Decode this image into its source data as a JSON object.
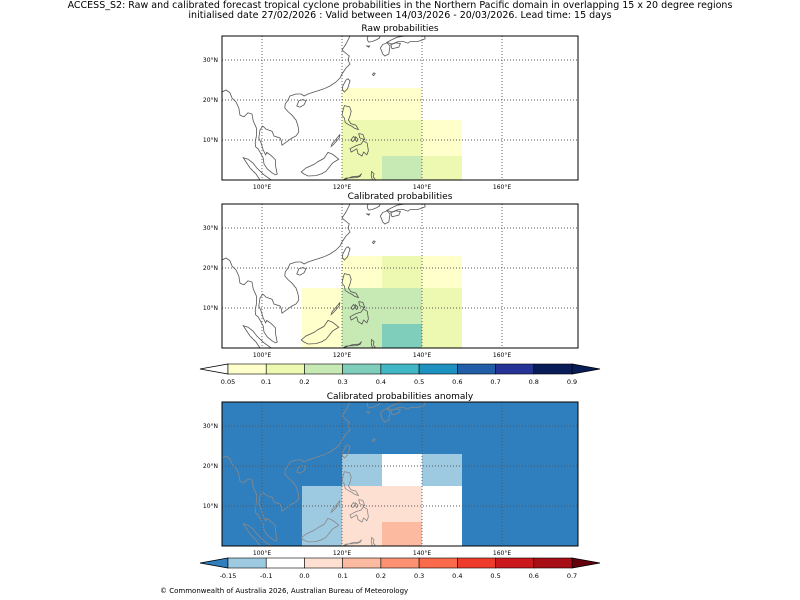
{
  "header": {
    "line1": "ACCESS_S2: Raw and calibrated forecast tropical cyclone probabilities in the Northern Pacific domain in overlapping 15 x 20 degree regions",
    "line2": "initialised date 27/02/2026 :  Valid between 14/03/2026 - 20/03/2026. Lead time: 15 days"
  },
  "map_axes": {
    "lon_ticks": [
      100,
      120,
      140,
      160
    ],
    "lon_labels": [
      "100°E",
      "120°E",
      "140°E",
      "160°E"
    ],
    "lat_ticks": [
      10,
      20,
      30
    ],
    "lat_labels": [
      "10°N",
      "20°N",
      "30°N"
    ],
    "lon_range": [
      90,
      179
    ],
    "lat_range": [
      0,
      36
    ]
  },
  "panels": [
    {
      "title": "Raw probabilities",
      "background": "#ffffff",
      "coast_color": "#555555",
      "cells": [
        {
          "lon0": 120,
          "lon1": 140,
          "lat0": 15,
          "lat1": 23,
          "color": "#ffffcc"
        },
        {
          "lon0": 120,
          "lon1": 140,
          "lat0": 0,
          "lat1": 15,
          "color": "#edf8b1"
        },
        {
          "lon0": 140,
          "lon1": 150,
          "lat0": 0,
          "lat1": 15,
          "color": "#ffffcc"
        },
        {
          "lon0": 130,
          "lon1": 140,
          "lat0": 0,
          "lat1": 6,
          "color": "#c7e9b4"
        },
        {
          "lon0": 140,
          "lon1": 150,
          "lat0": 0,
          "lat1": 6,
          "color": "#edf8b1"
        }
      ]
    },
    {
      "title": "Calibrated probabilities",
      "background": "#ffffff",
      "coast_color": "#555555",
      "cells": [
        {
          "lon0": 120,
          "lon1": 150,
          "lat0": 15,
          "lat1": 23,
          "color": "#ffffcc"
        },
        {
          "lon0": 130,
          "lon1": 140,
          "lat0": 15,
          "lat1": 23,
          "color": "#edf8b1"
        },
        {
          "lon0": 110,
          "lon1": 120,
          "lat0": 0,
          "lat1": 15,
          "color": "#ffffcc"
        },
        {
          "lon0": 120,
          "lon1": 140,
          "lat0": 0,
          "lat1": 15,
          "color": "#c7e9b4"
        },
        {
          "lon0": 140,
          "lon1": 150,
          "lat0": 0,
          "lat1": 15,
          "color": "#edf8b1"
        },
        {
          "lon0": 130,
          "lon1": 140,
          "lat0": 0,
          "lat1": 6,
          "color": "#7fcdbb"
        }
      ]
    },
    {
      "title": "Calibrated probabilities anomaly",
      "background": "#2f7fbf",
      "coast_color": "#888888",
      "cells": [
        {
          "lon0": 120,
          "lon1": 130,
          "lat0": 15,
          "lat1": 23,
          "color": "#9ecae1"
        },
        {
          "lon0": 130,
          "lon1": 140,
          "lat0": 15,
          "lat1": 23,
          "color": "#ffffff"
        },
        {
          "lon0": 140,
          "lon1": 150,
          "lat0": 15,
          "lat1": 23,
          "color": "#9ecae1"
        },
        {
          "lon0": 110,
          "lon1": 120,
          "lat0": 0,
          "lat1": 15,
          "color": "#9ecae1"
        },
        {
          "lon0": 120,
          "lon1": 140,
          "lat0": 0,
          "lat1": 15,
          "color": "#fee0d2"
        },
        {
          "lon0": 140,
          "lon1": 150,
          "lat0": 0,
          "lat1": 15,
          "color": "#ffffff"
        },
        {
          "lon0": 130,
          "lon1": 140,
          "lat0": 0,
          "lat1": 6,
          "color": "#fcbba1"
        }
      ]
    }
  ],
  "colorbars": [
    {
      "under_color": "#ffffff",
      "over_color": "#081d58",
      "colors": [
        "#ffffcc",
        "#edf8b1",
        "#c7e9b4",
        "#7fcdbb",
        "#41b6c4",
        "#1d91c0",
        "#225ea8",
        "#253494",
        "#081d58"
      ],
      "tick_labels": [
        "0.05",
        "0.1",
        "0.2",
        "0.3",
        "0.4",
        "0.5",
        "0.6",
        "0.7",
        "0.8",
        "0.9"
      ]
    },
    {
      "under_color": "#2f7fbf",
      "over_color": "#67000d",
      "colors": [
        "#9ecae1",
        "#ffffff",
        "#fee0d2",
        "#fcbba1",
        "#fc9272",
        "#fb6a4a",
        "#ef3b2c",
        "#cb181d",
        "#a50f15"
      ],
      "tick_labels": [
        "-0.15",
        "-0.1",
        "0.0",
        "0.1",
        "0.2",
        "0.3",
        "0.4",
        "0.5",
        "0.6",
        "0.7"
      ]
    }
  ],
  "footer": "© Commonwealth of Australia 2026, Australian Bureau of Meteorology"
}
